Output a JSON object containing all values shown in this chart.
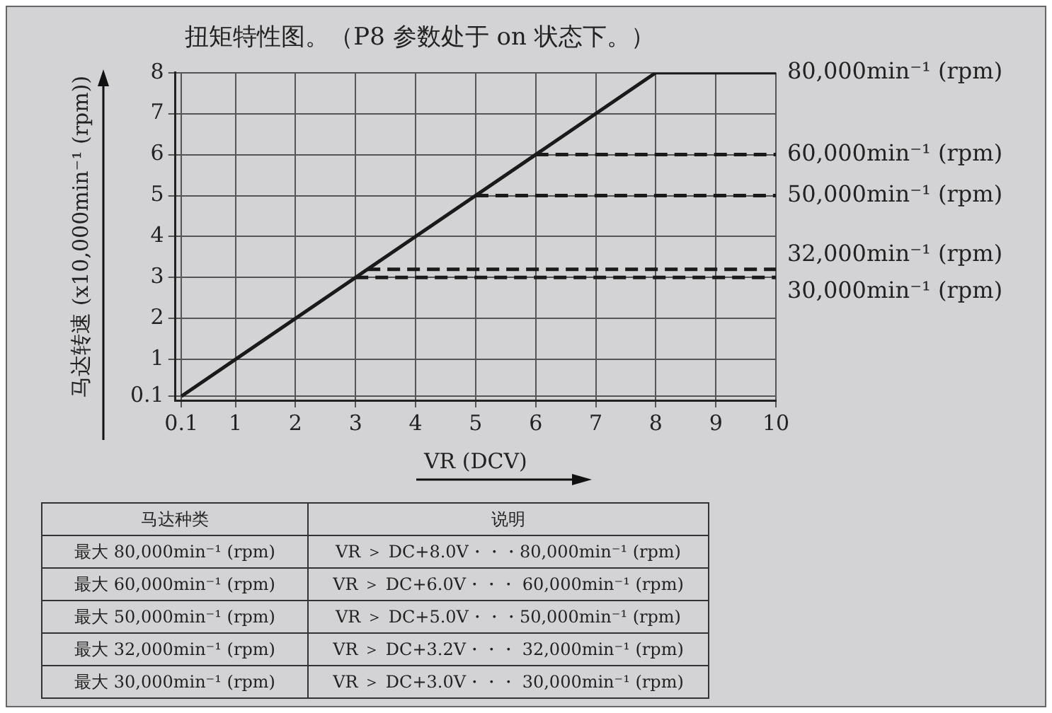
{
  "chart_data": {
    "type": "line",
    "title": "扭矩特性图。（P8 参数处于 on 状态下。）",
    "xlabel": "VR (DCV)",
    "ylabel": "马达转速 (x10,000min⁻¹ (rpm))",
    "xlim": [
      0,
      10
    ],
    "xticks": [
      0.1,
      1,
      2,
      3,
      4,
      5,
      6,
      7,
      8,
      9,
      10
    ],
    "ylim": [
      0,
      8
    ],
    "yticks": [
      0.1,
      1,
      2,
      3,
      4,
      5,
      6,
      7,
      8
    ],
    "grid": true,
    "legend": false,
    "marker": "none",
    "series": [
      {
        "name": "80,000min⁻¹ (rpm)",
        "color": "#1a1a1a",
        "line_style": "solid",
        "x": [
          0.1,
          8,
          10
        ],
        "values": [
          0.1,
          8,
          8
        ]
      },
      {
        "name": "60,000min⁻¹ (rpm)",
        "color": "#1a1a1a",
        "line_style": "dashed",
        "x": [
          6,
          10
        ],
        "values": [
          6,
          6
        ]
      },
      {
        "name": "50,000min⁻¹ (rpm)",
        "color": "#1a1a1a",
        "line_style": "dashed",
        "x": [
          5,
          10
        ],
        "values": [
          5,
          5
        ]
      },
      {
        "name": "32,000min⁻¹ (rpm)",
        "color": "#1a1a1a",
        "line_style": "dashed",
        "x": [
          3.2,
          10
        ],
        "values": [
          3.2,
          3.2
        ]
      },
      {
        "name": "30,000min⁻¹ (rpm)",
        "color": "#1a1a1a",
        "line_style": "dashed",
        "x": [
          3,
          10
        ],
        "values": [
          3,
          3
        ]
      }
    ],
    "annotations": [
      "马达种类",
      "说明",
      "最大 80,000min⁻¹ (rpm)",
      "VR ＞ DC+8.0V・・・80,000min⁻¹ (rpm)",
      "最大 60,000min⁻¹ (rpm)",
      "VR ＞ DC+6.0V・・・ 60,000min⁻¹ (rpm)",
      "最大 50,000min⁻¹ (rpm)",
      "VR ＞ DC+5.0V・・・50,000min⁻¹ (rpm)",
      "最大 32,000min⁻¹ (rpm)",
      "VR ＞ DC+3.2V・・・ 32,000min⁻¹ (rpm)",
      "最大 30,000min⁻¹ (rpm)",
      "VR ＞ DC+3.0V・・・ 30,000min⁻¹ (rpm)"
    ]
  }
}
